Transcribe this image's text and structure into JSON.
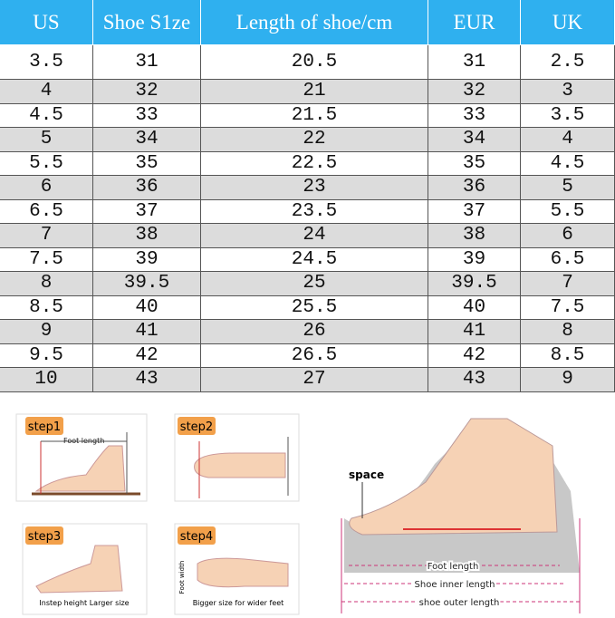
{
  "table": {
    "header": [
      "US",
      "Shoe S1ze",
      "Length of shoe/cm",
      "EUR",
      "UK"
    ],
    "rows": [
      [
        3.5,
        31,
        20.5,
        31,
        2.5
      ],
      [
        4,
        32,
        21,
        32,
        3
      ],
      [
        4.5,
        33,
        21.5,
        33,
        3.5
      ],
      [
        5,
        34,
        22,
        34,
        4
      ],
      [
        5.5,
        35,
        22.5,
        35,
        4.5
      ],
      [
        6,
        36,
        23,
        36,
        5
      ],
      [
        6.5,
        37,
        23.5,
        37,
        5.5
      ],
      [
        7,
        38,
        24,
        38,
        6
      ],
      [
        7.5,
        39,
        24.5,
        39,
        6.5
      ],
      [
        8,
        39.5,
        25,
        39.5,
        7
      ],
      [
        8.5,
        40,
        25.5,
        40,
        7.5
      ],
      [
        9,
        41,
        26,
        41,
        8
      ],
      [
        9.5,
        42,
        26.5,
        42,
        8.5
      ],
      [
        10,
        43,
        27,
        43,
        9
      ]
    ]
  },
  "steps": [
    {
      "label": "step1",
      "caption": "Foot length"
    },
    {
      "label": "step2"
    },
    {
      "label": "step3",
      "caption": "Instep height Larger size"
    },
    {
      "label": "step4",
      "caption": "Bigger size for wider feet",
      "side": "Foot width"
    }
  ],
  "diagram": {
    "space": "space",
    "foot": "Foot length",
    "inner": "Shoe inner length",
    "outer": "shoe outer length"
  }
}
